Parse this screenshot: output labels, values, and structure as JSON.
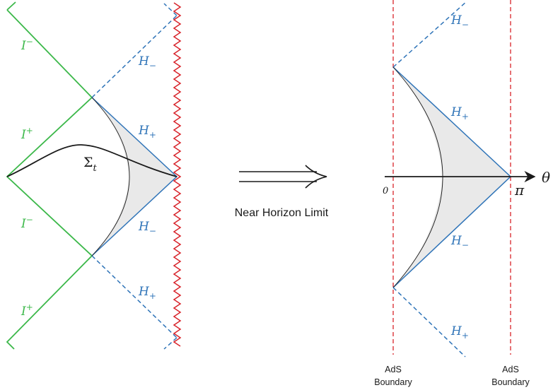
{
  "colors": {
    "green": "#3cb84a",
    "blue": "#2f74b8",
    "red": "#d8232a",
    "black": "#1a1a1a",
    "shade": "#e9e9e9"
  },
  "left": {
    "scri_labels": [
      {
        "main": "I",
        "sup": "−"
      },
      {
        "main": "I",
        "sup": "+"
      },
      {
        "main": "I",
        "sup": "−"
      },
      {
        "main": "I",
        "sup": "+"
      }
    ],
    "horizon_labels": [
      {
        "main": "H",
        "sub": "−"
      },
      {
        "main": "H",
        "sub": "+"
      },
      {
        "main": "H",
        "sub": "−"
      },
      {
        "main": "H",
        "sub": "+"
      }
    ],
    "sigma": {
      "main": "Σ",
      "sub": "t"
    }
  },
  "arrow_caption": "Near Horizon Limit",
  "right": {
    "horizon_labels": [
      {
        "main": "H",
        "sub": "−"
      },
      {
        "main": "H",
        "sub": "+"
      },
      {
        "main": "H",
        "sub": "−"
      },
      {
        "main": "H",
        "sub": "+"
      }
    ],
    "axis_label": "θ",
    "tick_zero": "0",
    "tick_pi": "π",
    "boundary_left": [
      "AdS",
      "Boundary"
    ],
    "boundary_right": [
      "AdS",
      "Boundary"
    ]
  }
}
